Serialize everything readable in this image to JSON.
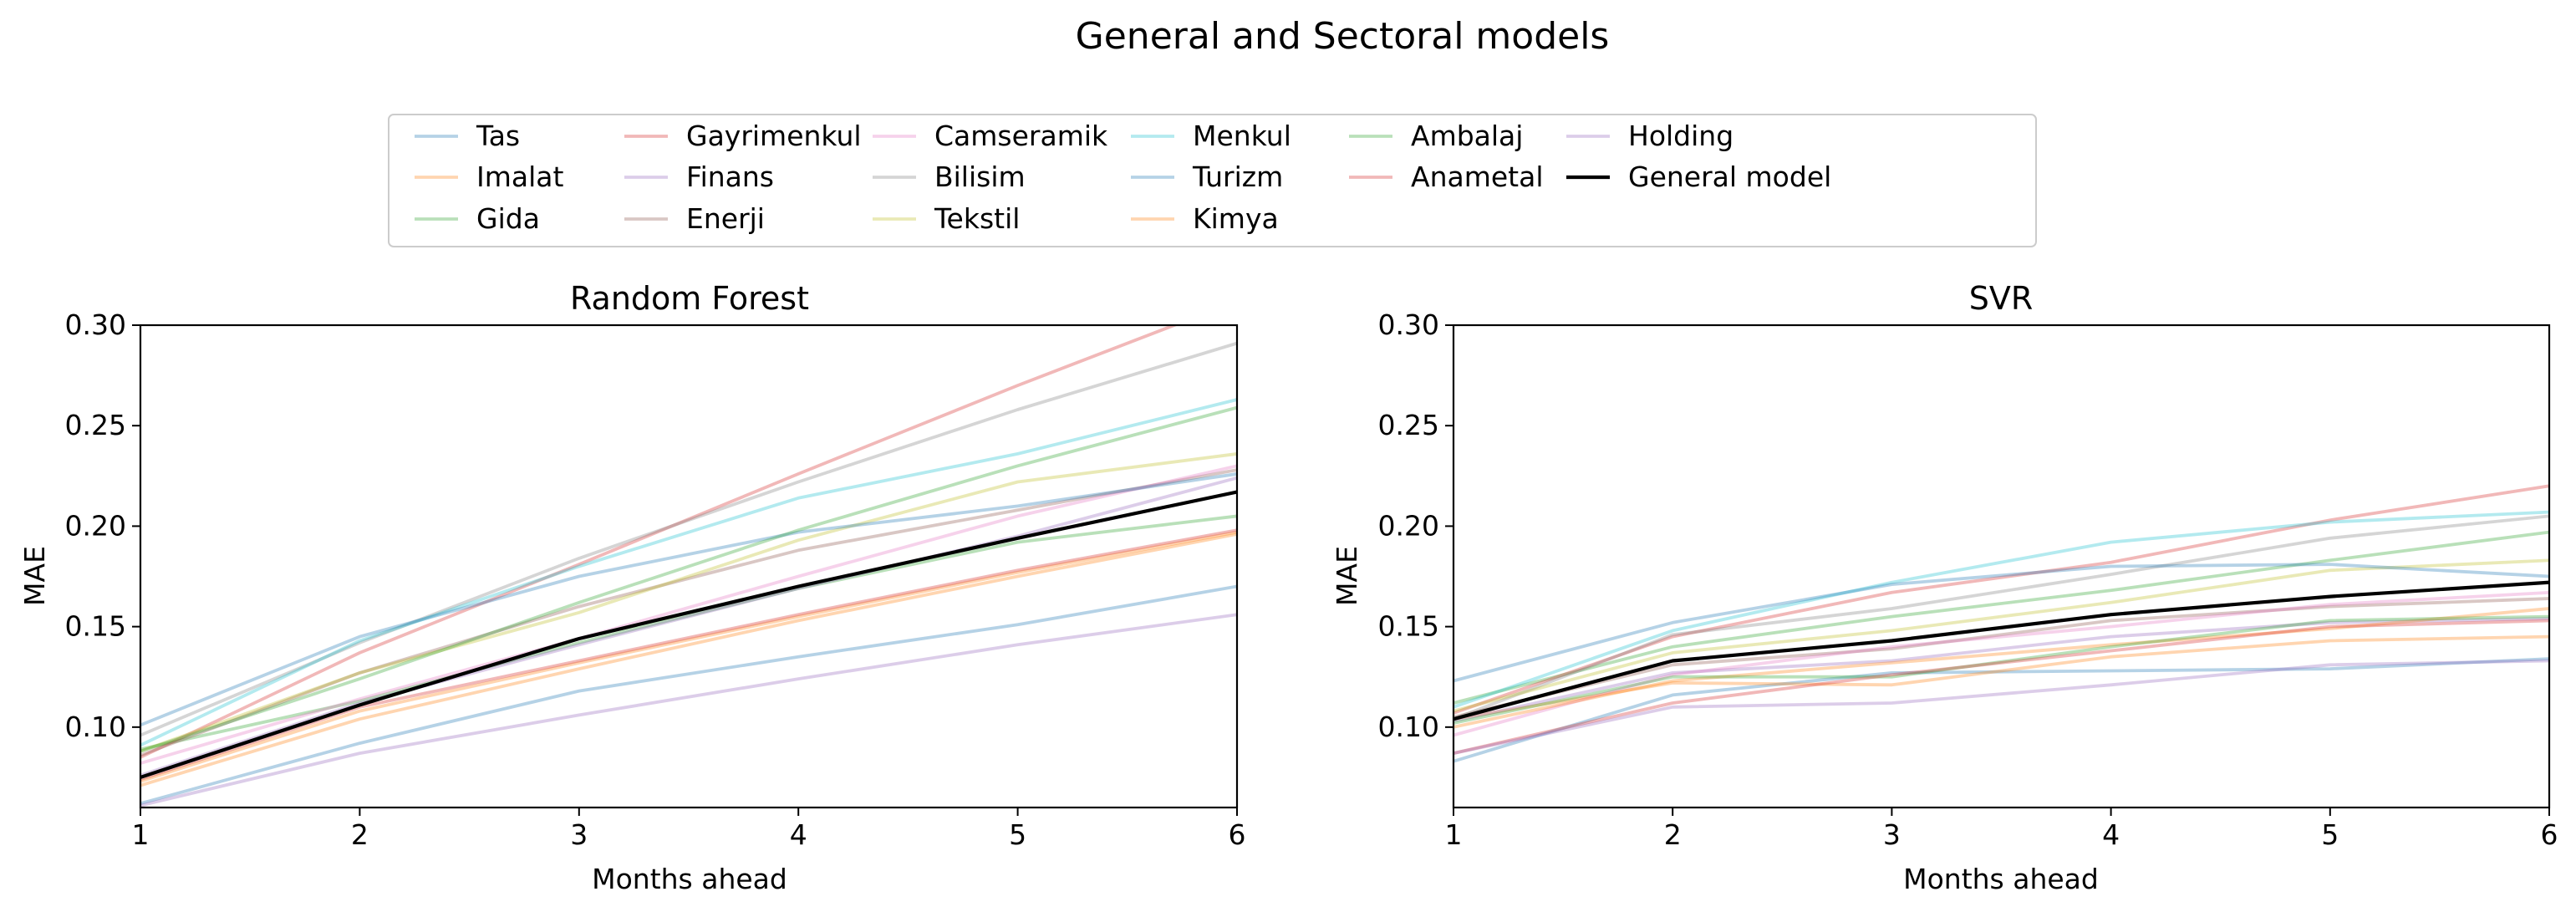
{
  "figure": {
    "suptitle": "General and Sectoral models",
    "colors": {
      "Tas": "#1f77b4",
      "Imalat": "#ff7f0e",
      "Gida": "#2ca02c",
      "Gayrimenkul": "#d62728",
      "Finans": "#9467bd",
      "Enerji": "#8c564b",
      "Camseramik": "#e377c2",
      "Bilisim": "#7f7f7f",
      "Tekstil": "#bcbd22",
      "Menkul": "#17becf",
      "Turizm": "#1f77b4",
      "Kimya": "#ff7f0e",
      "Ambalaj": "#2ca02c",
      "Anametal": "#d62728",
      "Holding": "#9467bd",
      "General model": "#000000"
    },
    "legend": {
      "placement": "upper center",
      "columns": [
        [
          "Tas",
          "Imalat",
          "Gida"
        ],
        [
          "Gayrimenkul",
          "Finans",
          "Enerji"
        ],
        [
          "Camseramik",
          "Bilisim",
          "Tekstil"
        ],
        [
          "Menkul",
          "Turizm",
          "Kimya"
        ],
        [
          "Ambalaj",
          "Anametal"
        ],
        [
          "Holding",
          "General model"
        ]
      ]
    }
  },
  "chart_data": [
    {
      "type": "line",
      "title": "Random Forest",
      "xlabel": "Months ahead",
      "ylabel": "MAE",
      "xlim": [
        1,
        6
      ],
      "ylim": [
        0.06,
        0.3
      ],
      "xticks": [
        "1",
        "2",
        "3",
        "4",
        "5",
        "6"
      ],
      "yticks": [
        "0.10",
        "0.15",
        "0.20",
        "0.25",
        "0.30"
      ],
      "grid": false,
      "x": [
        1,
        2,
        3,
        4,
        5,
        6
      ],
      "series": [
        {
          "name": "Tas",
          "values": [
            0.062,
            0.092,
            0.118,
            0.135,
            0.151,
            0.17
          ]
        },
        {
          "name": "Imalat",
          "values": [
            0.071,
            0.104,
            0.129,
            0.153,
            0.175,
            0.196
          ]
        },
        {
          "name": "Gida",
          "values": [
            0.089,
            0.113,
            0.142,
            0.169,
            0.192,
            0.205
          ]
        },
        {
          "name": "Gayrimenkul",
          "values": [
            0.085,
            0.137,
            0.181,
            0.226,
            0.27,
            0.312
          ]
        },
        {
          "name": "Finans",
          "values": [
            0.076,
            0.112,
            0.141,
            0.169,
            0.195,
            0.224
          ]
        },
        {
          "name": "Enerji",
          "values": [
            0.086,
            0.127,
            0.16,
            0.188,
            0.208,
            0.228
          ]
        },
        {
          "name": "Camseramik",
          "values": [
            0.082,
            0.114,
            0.144,
            0.175,
            0.205,
            0.23
          ]
        },
        {
          "name": "Bilisim",
          "values": [
            0.096,
            0.142,
            0.184,
            0.222,
            0.258,
            0.291
          ]
        },
        {
          "name": "Tekstil",
          "values": [
            0.088,
            0.127,
            0.157,
            0.193,
            0.222,
            0.236
          ]
        },
        {
          "name": "Menkul",
          "values": [
            0.091,
            0.143,
            0.18,
            0.214,
            0.236,
            0.263
          ]
        },
        {
          "name": "Turizm",
          "values": [
            0.101,
            0.145,
            0.175,
            0.197,
            0.21,
            0.226
          ]
        },
        {
          "name": "Kimya",
          "values": [
            0.073,
            0.108,
            0.132,
            0.155,
            0.177,
            0.197
          ]
        },
        {
          "name": "Ambalaj",
          "values": [
            0.088,
            0.124,
            0.162,
            0.198,
            0.23,
            0.259
          ]
        },
        {
          "name": "Anametal",
          "values": [
            0.074,
            0.11,
            0.133,
            0.156,
            0.178,
            0.198
          ]
        },
        {
          "name": "Holding",
          "values": [
            0.061,
            0.087,
            0.106,
            0.124,
            0.141,
            0.156
          ]
        },
        {
          "name": "General model",
          "values": [
            0.075,
            0.111,
            0.144,
            0.17,
            0.194,
            0.217
          ]
        }
      ]
    },
    {
      "type": "line",
      "title": "SVR",
      "xlabel": "Months ahead",
      "ylabel": "MAE",
      "xlim": [
        1,
        6
      ],
      "ylim": [
        0.06,
        0.3
      ],
      "xticks": [
        "1",
        "2",
        "3",
        "4",
        "5",
        "6"
      ],
      "yticks": [
        "0.10",
        "0.15",
        "0.20",
        "0.25",
        "0.30"
      ],
      "grid": false,
      "x": [
        1,
        2,
        3,
        4,
        5,
        6
      ],
      "series": [
        {
          "name": "Tas",
          "values": [
            0.083,
            0.116,
            0.127,
            0.128,
            0.129,
            0.134
          ]
        },
        {
          "name": "Imalat",
          "values": [
            0.104,
            0.122,
            0.121,
            0.135,
            0.143,
            0.145
          ]
        },
        {
          "name": "Gida",
          "values": [
            0.112,
            0.14,
            0.155,
            0.168,
            0.183,
            0.197
          ]
        },
        {
          "name": "Gayrimenkul",
          "values": [
            0.107,
            0.145,
            0.167,
            0.182,
            0.203,
            0.22
          ]
        },
        {
          "name": "Finans",
          "values": [
            0.103,
            0.127,
            0.133,
            0.145,
            0.152,
            0.154
          ]
        },
        {
          "name": "Enerji",
          "values": [
            0.105,
            0.131,
            0.139,
            0.153,
            0.16,
            0.164
          ]
        },
        {
          "name": "Camseramik",
          "values": [
            0.096,
            0.126,
            0.14,
            0.15,
            0.161,
            0.167
          ]
        },
        {
          "name": "Bilisim",
          "values": [
            0.104,
            0.146,
            0.159,
            0.176,
            0.194,
            0.205
          ]
        },
        {
          "name": "Tekstil",
          "values": [
            0.108,
            0.137,
            0.148,
            0.162,
            0.178,
            0.183
          ]
        },
        {
          "name": "Menkul",
          "values": [
            0.11,
            0.148,
            0.172,
            0.192,
            0.202,
            0.207
          ]
        },
        {
          "name": "Turizm",
          "values": [
            0.123,
            0.152,
            0.171,
            0.18,
            0.181,
            0.175
          ]
        },
        {
          "name": "Kimya",
          "values": [
            0.1,
            0.123,
            0.132,
            0.141,
            0.149,
            0.159
          ]
        },
        {
          "name": "Ambalaj",
          "values": [
            0.102,
            0.125,
            0.125,
            0.14,
            0.153,
            0.155
          ]
        },
        {
          "name": "Anametal",
          "values": [
            0.087,
            0.112,
            0.126,
            0.138,
            0.15,
            0.153
          ]
        },
        {
          "name": "Holding",
          "values": [
            0.087,
            0.11,
            0.112,
            0.121,
            0.131,
            0.133
          ]
        },
        {
          "name": "General model",
          "values": [
            0.104,
            0.133,
            0.143,
            0.156,
            0.165,
            0.172
          ]
        }
      ]
    }
  ]
}
